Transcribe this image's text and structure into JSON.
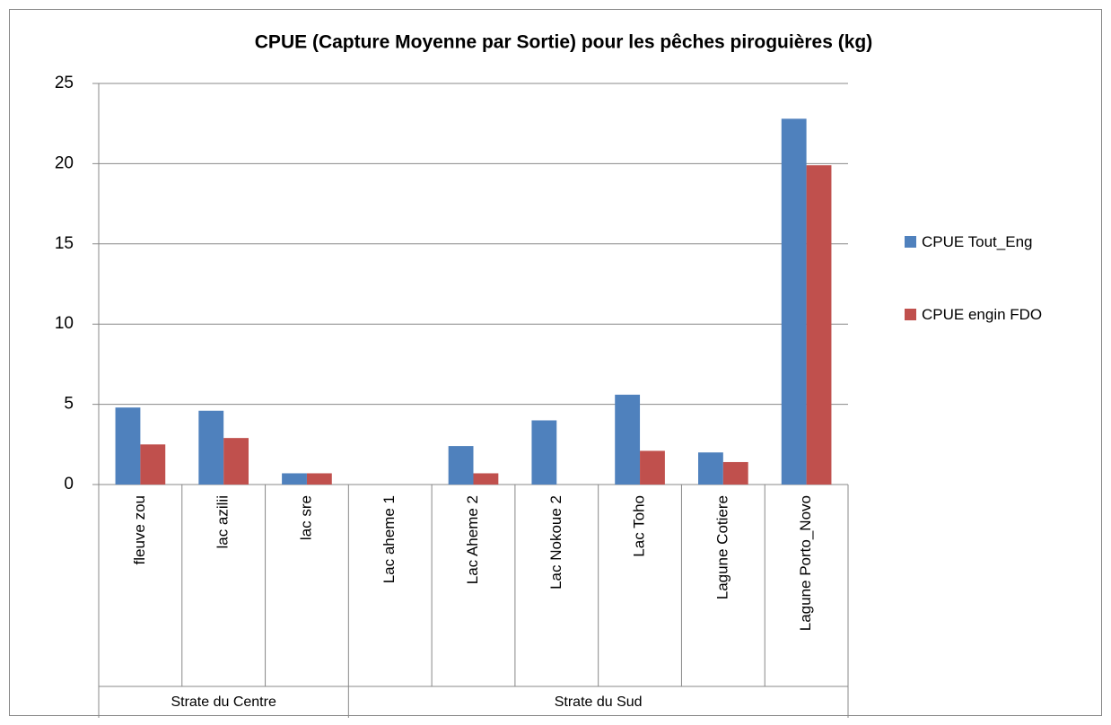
{
  "chart_data": {
    "type": "bar",
    "title": "CPUE (Capture Moyenne par Sortie) pour les pêches piroguières (kg)",
    "groups": [
      {
        "name": "Strate du Centre",
        "categories": [
          "fleuve zou",
          "lac azilii",
          "lac sre"
        ]
      },
      {
        "name": "Strate du Sud",
        "categories": [
          "Lac aheme 1",
          "Lac Aheme 2",
          "Lac Nokoue 2",
          "Lac Toho",
          "Lagune Cotiere",
          "Lagune Porto_Novo"
        ]
      }
    ],
    "series": [
      {
        "name": "CPUE Tout_Eng",
        "color": "#4f81bd",
        "values": [
          4.8,
          4.6,
          0.7,
          0,
          2.4,
          4.0,
          5.6,
          2.0,
          22.8
        ]
      },
      {
        "name": "CPUE engin FDO",
        "color": "#c0504d",
        "values": [
          2.5,
          2.9,
          0.7,
          0,
          0.7,
          0,
          2.1,
          1.4,
          19.9
        ]
      }
    ],
    "ylim": [
      0,
      25
    ],
    "yticks": [
      0,
      5,
      10,
      15,
      20,
      25
    ],
    "grid": true,
    "legend": "right"
  }
}
